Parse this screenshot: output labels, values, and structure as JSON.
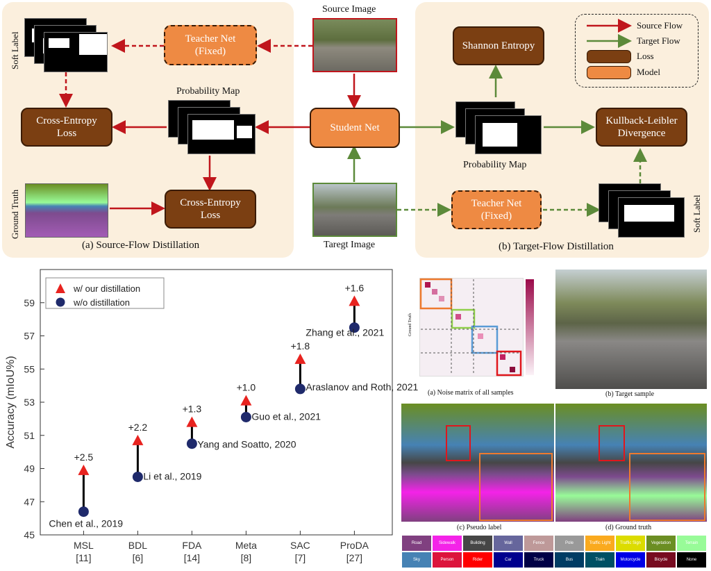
{
  "top": {
    "source_panel_caption": "(a) Source-Flow Distillation",
    "target_panel_caption": "(b) Target-Flow Distillation",
    "source_image_label": "Source Image",
    "target_image_label": "Taregt Image",
    "soft_label_left": "Soft Label",
    "soft_label_right": "Soft Label",
    "ground_truth": "Ground Truth",
    "probability_map_left": "Probability Map",
    "probability_map_right": "Probability Map",
    "teacher_net_left": "Teacher Net\n(Fixed)",
    "teacher_net_right": "Teacher Net\n(Fixed)",
    "student_net": "Student Net",
    "cross_entropy_1": "Cross-Entropy\nLoss",
    "cross_entropy_2": "Cross-Entropy\nLoss",
    "shannon_entropy": "Shannon Entropy",
    "kl_divergence": "Kullback-Leibler\nDivergence",
    "legend": {
      "source_flow": "Source Flow",
      "target_flow": "Target Flow",
      "loss": "Loss",
      "model": "Model"
    },
    "colors": {
      "source_flow": "#c0161c",
      "target_flow": "#5c8a3a",
      "loss": "#7b3f12",
      "model": "#ee8a43",
      "panel": "#fbefdd"
    }
  },
  "chart_data": {
    "type": "scatter",
    "ylabel": "Accuracy (mIoU%)",
    "ylim": [
      45,
      61
    ],
    "yticks": [
      45,
      47,
      49,
      51,
      53,
      55,
      57,
      59
    ],
    "categories": [
      "MSL\n[11]",
      "BDL\n[6]",
      "FDA\n[14]",
      "Meta\n[8]",
      "SAC\n[7]",
      "ProDA\n[27]"
    ],
    "series": [
      {
        "name": "w/ our distillation",
        "marker": "triangle",
        "color": "#e8231f",
        "values": [
          48.9,
          50.7,
          51.8,
          53.1,
          55.6,
          59.1
        ]
      },
      {
        "name": "w/o distillation",
        "marker": "circle",
        "color": "#1f2a6b",
        "values": [
          46.4,
          48.5,
          50.5,
          52.1,
          53.8,
          57.5
        ]
      }
    ],
    "gains": [
      "+2.5",
      "+2.2",
      "+1.3",
      "+1.0",
      "+1.8",
      "+1.6"
    ],
    "method_labels": [
      "Chen et al., 2019",
      "Li et al., 2019",
      "Yang and Soatto, 2020",
      "Guo et al., 2021",
      "Araslanov and Roth, 2021",
      "Zhang et al., 2021"
    ],
    "legend_position": "top-left",
    "grid": false
  },
  "right": {
    "noise_caption": "(a) Noise matrix of all samples",
    "target_caption": "(b) Target sample",
    "pseudo_caption": "(c) Pseudo label",
    "gt_caption": "(d) Ground truth",
    "noise_ylabel": "Ground Truth",
    "class_legend": [
      {
        "name": "Road",
        "color": "#804080"
      },
      {
        "name": "Sidewalk",
        "color": "#f423e8"
      },
      {
        "name": "Building",
        "color": "#464646"
      },
      {
        "name": "Wall",
        "color": "#66669c"
      },
      {
        "name": "Fence",
        "color": "#be9999"
      },
      {
        "name": "Pole",
        "color": "#999999"
      },
      {
        "name": "Traffic Light",
        "color": "#faaa1e"
      },
      {
        "name": "Traffic Sign",
        "color": "#dcdc00"
      },
      {
        "name": "Vegetation",
        "color": "#6b8e23"
      },
      {
        "name": "Terrain",
        "color": "#98fb98"
      },
      {
        "name": "Sky",
        "color": "#4682b4"
      },
      {
        "name": "Person",
        "color": "#dc143c"
      },
      {
        "name": "Rider",
        "color": "#ff0000"
      },
      {
        "name": "Car",
        "color": "#00008e"
      },
      {
        "name": "Truck",
        "color": "#000046"
      },
      {
        "name": "Bus",
        "color": "#003c64"
      },
      {
        "name": "Train",
        "color": "#005064"
      },
      {
        "name": "Motorcycle",
        "color": "#0000e6"
      },
      {
        "name": "Bicycle",
        "color": "#770b20"
      },
      {
        "name": "None",
        "color": "#000000"
      }
    ]
  }
}
